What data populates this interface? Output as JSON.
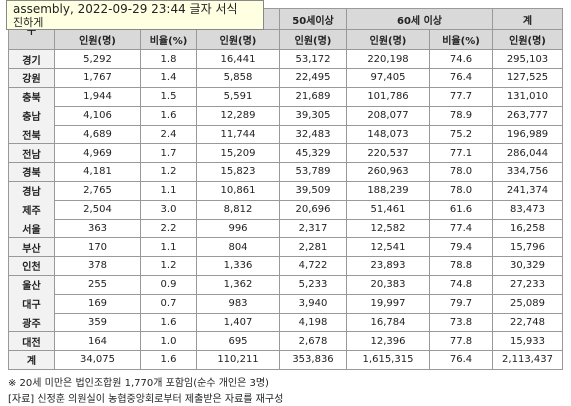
{
  "tooltip": {
    "line1": "assembly, 2022-09-29 23:44 글자 서식",
    "line2": "진하게"
  },
  "table": {
    "header_top": [
      "구",
      "50세이상",
      "60세 이상",
      "계"
    ],
    "header_sub": [
      "인원(명)",
      "비율(%)",
      "인원(명)",
      "인원(명)",
      "인원(명)",
      "비율(%)",
      "인원(명)"
    ],
    "rows": [
      [
        "경기",
        "5,292",
        "1.8",
        "16,441",
        "53,172",
        "220,198",
        "74.6",
        "295,103"
      ],
      [
        "강원",
        "1,767",
        "1.4",
        "5,858",
        "22,495",
        "97,405",
        "76.4",
        "127,525"
      ],
      [
        "충북",
        "1,944",
        "1.5",
        "5,591",
        "21,689",
        "101,786",
        "77.7",
        "131,010"
      ],
      [
        "충남",
        "4,106",
        "1.6",
        "12,289",
        "39,305",
        "208,077",
        "78.9",
        "263,777"
      ],
      [
        "전북",
        "4,689",
        "2.4",
        "11,744",
        "32,483",
        "148,073",
        "75.2",
        "196,989"
      ],
      [
        "전남",
        "4,969",
        "1.7",
        "15,209",
        "45,329",
        "220,537",
        "77.1",
        "286,044"
      ],
      [
        "경북",
        "4,181",
        "1.2",
        "15,823",
        "53,789",
        "260,963",
        "78.0",
        "334,756"
      ],
      [
        "경남",
        "2,765",
        "1.1",
        "10,861",
        "39,509",
        "188,239",
        "78.0",
        "241,374"
      ],
      [
        "제주",
        "2,504",
        "3.0",
        "8,812",
        "20,696",
        "51,461",
        "61.6",
        "83,473"
      ],
      [
        "서울",
        "363",
        "2.2",
        "996",
        "2,317",
        "12,582",
        "77.4",
        "16,258"
      ],
      [
        "부산",
        "170",
        "1.1",
        "804",
        "2,281",
        "12,541",
        "79.4",
        "15,796"
      ],
      [
        "인천",
        "378",
        "1.2",
        "1,336",
        "4,722",
        "23,893",
        "78.8",
        "30,329"
      ],
      [
        "울산",
        "255",
        "0.9",
        "1,362",
        "5,233",
        "20,383",
        "74.8",
        "27,233"
      ],
      [
        "대구",
        "169",
        "0.7",
        "983",
        "3,940",
        "19,997",
        "79.7",
        "25,089"
      ],
      [
        "광주",
        "359",
        "1.6",
        "1,407",
        "4,198",
        "16,784",
        "73.8",
        "22,748"
      ],
      [
        "대전",
        "164",
        "1.0",
        "695",
        "2,678",
        "12,396",
        "77.8",
        "15,933"
      ],
      [
        "계",
        "34,075",
        "1.6",
        "110,211",
        "353,836",
        "1,615,315",
        "76.4",
        "2,113,437"
      ]
    ]
  },
  "notes": [
    "※ 20세 미만은 법인조합원 1,770개 포함임(순수 개인은 3명)",
    "[자료] 신정훈 의원실이 농협중앙회로부터 제출받은 자료를 재구성"
  ]
}
